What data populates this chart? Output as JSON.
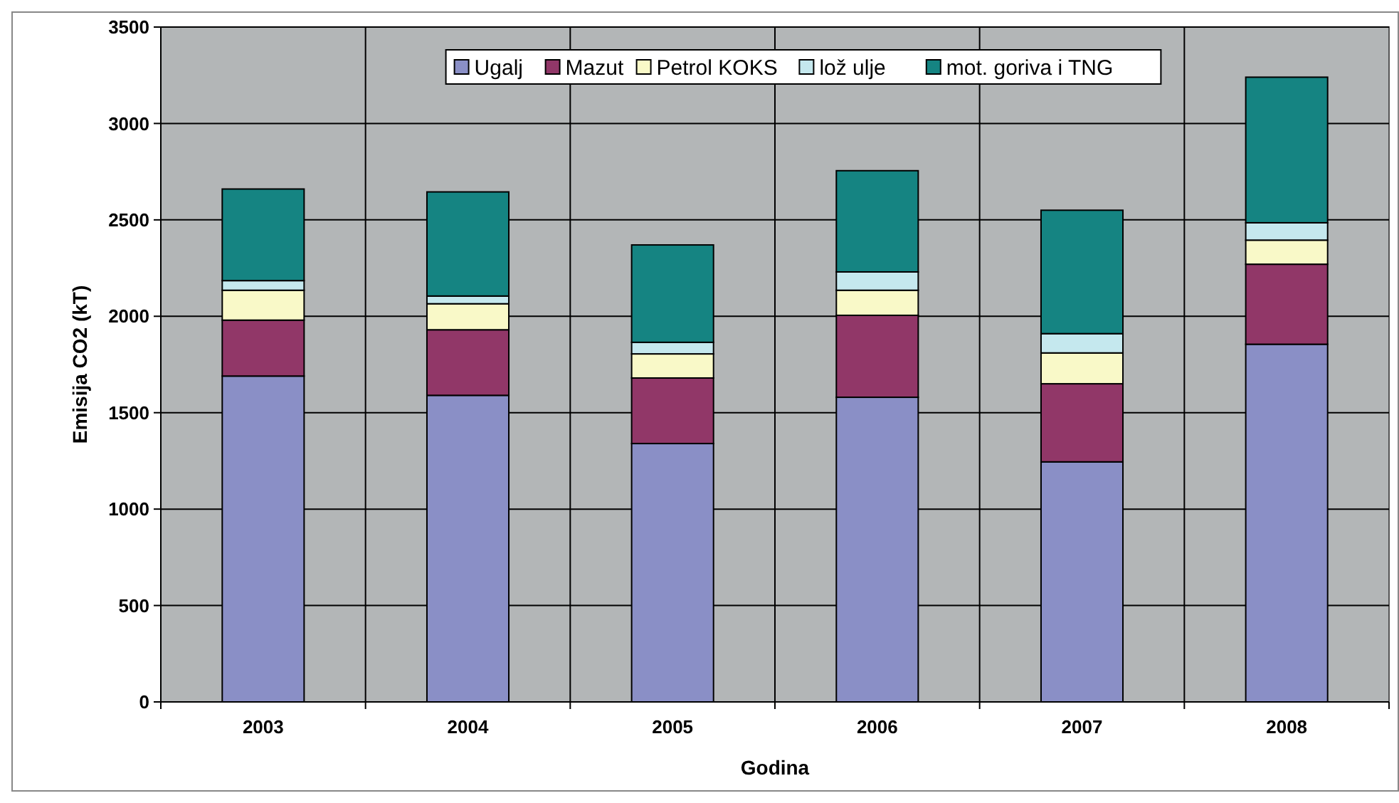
{
  "chart_data": {
    "type": "bar",
    "stacked": true,
    "xlabel": "Godina",
    "ylabel": "Emisija CO2 (kT)",
    "categories": [
      "2003",
      "2004",
      "2005",
      "2006",
      "2007",
      "2008"
    ],
    "series": [
      {
        "name": "Ugalj",
        "color": "#8a8fc6",
        "values": [
          1690,
          1590,
          1340,
          1580,
          1245,
          1855
        ]
      },
      {
        "name": "Mazut",
        "color": "#913768",
        "values": [
          290,
          340,
          340,
          425,
          405,
          415
        ]
      },
      {
        "name": "Petrol KOKS",
        "color": "#f9f9c8",
        "values": [
          155,
          135,
          125,
          130,
          160,
          125
        ]
      },
      {
        "name": "lož ulje",
        "color": "#c5e8ee",
        "values": [
          50,
          40,
          60,
          95,
          100,
          90
        ]
      },
      {
        "name": "mot. goriva i TNG",
        "color": "#158482",
        "values": [
          475,
          540,
          505,
          525,
          640,
          755
        ]
      }
    ],
    "ylim": [
      0,
      3500
    ],
    "yticks": [
      0,
      500,
      1000,
      1500,
      2000,
      2500,
      3000,
      3500
    ],
    "grid": true,
    "legend": "top"
  }
}
